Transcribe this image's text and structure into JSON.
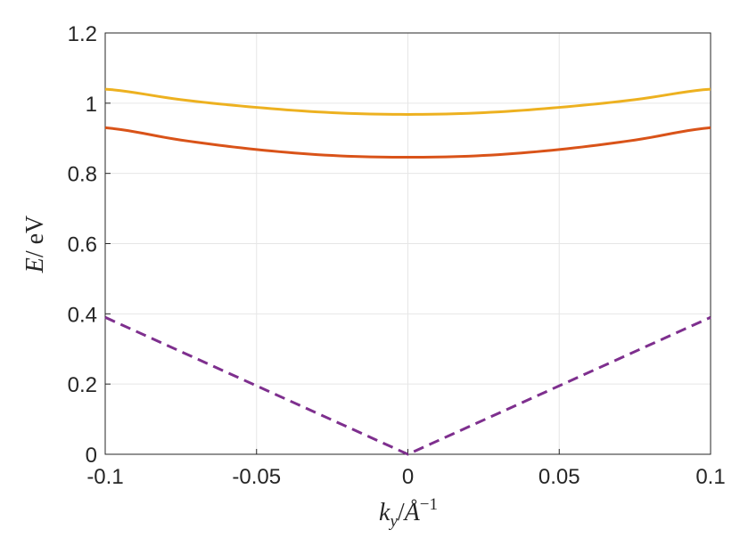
{
  "chart_data": {
    "type": "line",
    "xlabel": "k_y/Å^-1",
    "ylabel": "E/ eV",
    "xlim": [
      -0.1,
      0.1
    ],
    "ylim": [
      0,
      1.2
    ],
    "xticks": [
      "-0.1",
      "-0.05",
      "0",
      "0.05",
      "0.1"
    ],
    "xtick_values": [
      -0.1,
      -0.05,
      0,
      0.05,
      0.1
    ],
    "yticks": [
      "0",
      "0.2",
      "0.4",
      "0.6",
      "0.8",
      "1",
      "1.2"
    ],
    "ytick_values": [
      0,
      0.2,
      0.4,
      0.6,
      0.8,
      1.0,
      1.2
    ],
    "grid": true,
    "series": [
      {
        "color": "#EDB120",
        "style": "solid",
        "x": [
          -0.1,
          -0.075,
          -0.05,
          -0.025,
          0,
          0.025,
          0.05,
          0.075,
          0.1
        ],
        "values": [
          1.04,
          1.01,
          0.988,
          0.973,
          0.968,
          0.973,
          0.988,
          1.01,
          1.04
        ]
      },
      {
        "color": "#D95319",
        "style": "solid",
        "x": [
          -0.1,
          -0.075,
          -0.05,
          -0.025,
          0,
          0.025,
          0.05,
          0.075,
          0.1
        ],
        "values": [
          0.93,
          0.895,
          0.868,
          0.851,
          0.846,
          0.851,
          0.868,
          0.895,
          0.93
        ]
      },
      {
        "color": "#7E2F8E",
        "style": "dashed",
        "x": [
          -0.1,
          0,
          0.1
        ],
        "values": [
          0.39,
          0.0,
          0.39
        ]
      }
    ]
  }
}
